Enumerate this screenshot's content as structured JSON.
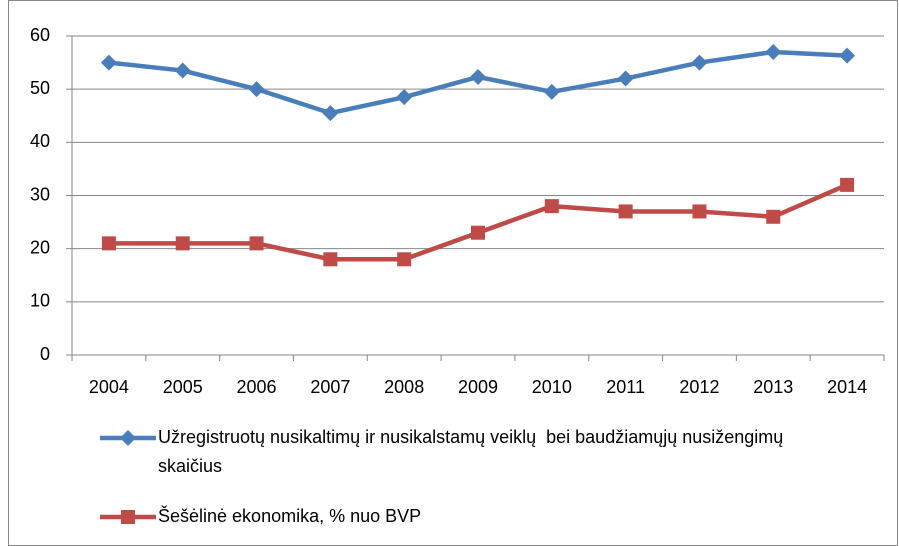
{
  "chart_data": {
    "type": "line",
    "categories": [
      "2004",
      "2005",
      "2006",
      "2007",
      "2008",
      "2009",
      "2010",
      "2011",
      "2012",
      "2013",
      "2014"
    ],
    "series": [
      {
        "name": "Užregistruotų nusikaltimų ir nusikalstamų veiklų  bei baudžiamųjų nusižengimų skaičius",
        "color": "#4a7ebb",
        "marker": "diamond",
        "values": [
          55,
          53.5,
          50,
          45.5,
          48.5,
          52.3,
          49.5,
          52,
          55,
          57,
          56.3
        ]
      },
      {
        "name": "Šešėlinė ekonomika, % nuo BVP",
        "color": "#be4b48",
        "marker": "square",
        "values": [
          21,
          21,
          21,
          18,
          18,
          23,
          28,
          27,
          27,
          26,
          32
        ]
      }
    ],
    "ylim": [
      0,
      60
    ],
    "yticks": [
      0,
      10,
      20,
      30,
      40,
      50,
      60
    ],
    "grid": true
  }
}
